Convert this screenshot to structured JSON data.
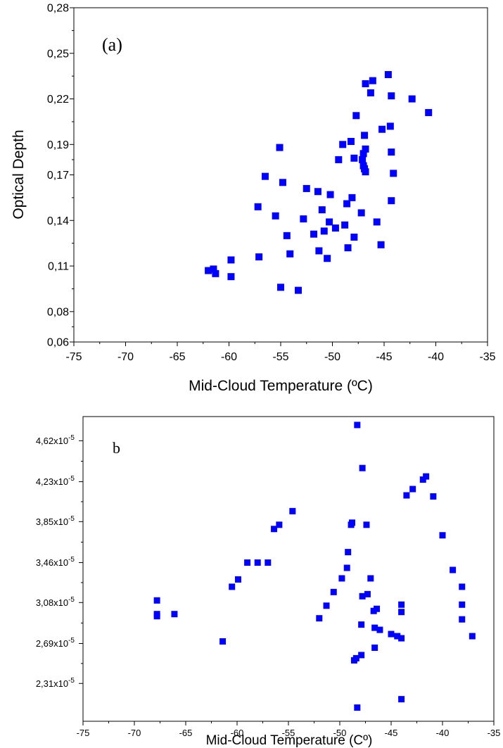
{
  "chart_data": [
    {
      "type": "scatter",
      "panel_label": "(a)",
      "xlabel": "Mid-Cloud Temperature (ºC)",
      "ylabel": "Optical Depth",
      "xlim": [
        -75,
        -35
      ],
      "ylim": [
        0.06,
        0.28
      ],
      "x_ticks": [
        "-75",
        "-70",
        "-65",
        "-60",
        "-55",
        "-50",
        "-45",
        "-40",
        "-35"
      ],
      "y_tick_values": [
        0.06,
        0.08,
        0.11,
        0.14,
        0.17,
        0.19,
        0.22,
        0.25,
        0.28
      ],
      "y_ticks": [
        "0,06",
        "0,08",
        "0,11",
        "0,14",
        "0,17",
        "0,19",
        "0,22",
        "0,25",
        "0,28"
      ],
      "marker_color": "#0000ff",
      "points": [
        [
          -62,
          0.107
        ],
        [
          -61.5,
          0.108
        ],
        [
          -61.3,
          0.105
        ],
        [
          -59.8,
          0.114
        ],
        [
          -59.8,
          0.103
        ],
        [
          -57.1,
          0.116
        ],
        [
          -57.2,
          0.149
        ],
        [
          -56.5,
          0.169
        ],
        [
          -55.5,
          0.143
        ],
        [
          -55.1,
          0.188
        ],
        [
          -54.8,
          0.165
        ],
        [
          -55.0,
          0.096
        ],
        [
          -54.4,
          0.13
        ],
        [
          -54.1,
          0.118
        ],
        [
          -53.3,
          0.094
        ],
        [
          -52.8,
          0.141
        ],
        [
          -52.5,
          0.161
        ],
        [
          -51.8,
          0.131
        ],
        [
          -51.4,
          0.159
        ],
        [
          -51.3,
          0.12
        ],
        [
          -51.0,
          0.147
        ],
        [
          -50.8,
          0.133
        ],
        [
          -50.5,
          0.115
        ],
        [
          -50.3,
          0.139
        ],
        [
          -50.2,
          0.157
        ],
        [
          -49.7,
          0.135
        ],
        [
          -49.4,
          0.18
        ],
        [
          -49.0,
          0.19
        ],
        [
          -48.8,
          0.137
        ],
        [
          -48.6,
          0.151
        ],
        [
          -48.5,
          0.122
        ],
        [
          -48.2,
          0.192
        ],
        [
          -48.1,
          0.155
        ],
        [
          -47.9,
          0.129
        ],
        [
          -47.9,
          0.181
        ],
        [
          -47.7,
          0.209
        ],
        [
          -47.2,
          0.145
        ],
        [
          -47.1,
          0.18
        ],
        [
          -47.0,
          0.176
        ],
        [
          -47.0,
          0.184
        ],
        [
          -46.9,
          0.174
        ],
        [
          -46.8,
          0.172
        ],
        [
          -46.9,
          0.196
        ],
        [
          -46.8,
          0.187
        ],
        [
          -46.8,
          0.23
        ],
        [
          -46.3,
          0.224
        ],
        [
          -46.1,
          0.232
        ],
        [
          -45.7,
          0.139
        ],
        [
          -45.3,
          0.124
        ],
        [
          -45.2,
          0.2
        ],
        [
          -44.6,
          0.236
        ],
        [
          -44.4,
          0.202
        ],
        [
          -44.3,
          0.222
        ],
        [
          -44.3,
          0.185
        ],
        [
          -44.3,
          0.153
        ],
        [
          -44.1,
          0.171
        ],
        [
          -42.3,
          0.22
        ],
        [
          -40.7,
          0.211
        ]
      ]
    },
    {
      "type": "scatter",
      "panel_label": "b",
      "xlabel": "Mid-Cloud Temperature (Cº)",
      "ylabel": "",
      "xlim": [
        -75,
        -35
      ],
      "ylim": [
        1.95e-05,
        4.85e-05
      ],
      "x_ticks": [
        "-75",
        "-70",
        "-65",
        "-60",
        "-55",
        "-50",
        "-45",
        "-40",
        "-35"
      ],
      "y_tick_values": [
        2.31e-05,
        2.69e-05,
        3.08e-05,
        3.46e-05,
        3.85e-05,
        4.23e-05,
        4.62e-05
      ],
      "y_ticks": [
        "2,31x10",
        "2,69x10",
        "3,08x10",
        "3,46x10",
        "3,85x10",
        "4,23x10",
        "4,62x10"
      ],
      "y_tick_exponent": "-5",
      "marker_color": "#0000ff",
      "points": [
        [
          -67.8,
          3.1e-05
        ],
        [
          -67.8,
          2.97e-05
        ],
        [
          -67.8,
          2.95e-05
        ],
        [
          -66.1,
          2.97e-05
        ],
        [
          -61.4,
          2.71e-05
        ],
        [
          -60.5,
          3.23e-05
        ],
        [
          -59.9,
          3.3e-05
        ],
        [
          -59.0,
          3.46e-05
        ],
        [
          -58.0,
          3.46e-05
        ],
        [
          -57.0,
          3.46e-05
        ],
        [
          -56.4,
          3.78e-05
        ],
        [
          -55.9,
          3.82e-05
        ],
        [
          -54.6,
          3.95e-05
        ],
        [
          -52.0,
          2.93e-05
        ],
        [
          -51.3,
          3.05e-05
        ],
        [
          -50.6,
          3.18e-05
        ],
        [
          -49.8,
          3.31e-05
        ],
        [
          -49.3,
          3.41e-05
        ],
        [
          -49.2,
          3.56e-05
        ],
        [
          -48.9,
          3.82e-05
        ],
        [
          -48.8,
          3.84e-05
        ],
        [
          -48.6,
          2.53e-05
        ],
        [
          -48.4,
          2.55e-05
        ],
        [
          -48.3,
          2.08e-05
        ],
        [
          -48.3,
          4.77e-05
        ],
        [
          -47.9,
          2.58e-05
        ],
        [
          -47.9,
          2.87e-05
        ],
        [
          -47.8,
          3.14e-05
        ],
        [
          -47.8,
          4.36e-05
        ],
        [
          -47.4,
          3.82e-05
        ],
        [
          -47.3,
          3.16e-05
        ],
        [
          -47.0,
          3.31e-05
        ],
        [
          -46.7,
          3e-05
        ],
        [
          -46.6,
          2.84e-05
        ],
        [
          -46.6,
          2.65e-05
        ],
        [
          -46.4,
          3.02e-05
        ],
        [
          -46.1,
          2.82e-05
        ],
        [
          -45.0,
          2.78e-05
        ],
        [
          -44.4,
          2.76e-05
        ],
        [
          -44.0,
          3.06e-05
        ],
        [
          -44.0,
          2.99e-05
        ],
        [
          -44.0,
          2.74e-05
        ],
        [
          -44.0,
          2.16e-05
        ],
        [
          -43.5,
          4.1e-05
        ],
        [
          -42.9,
          4.16e-05
        ],
        [
          -41.9,
          4.25e-05
        ],
        [
          -41.6,
          4.28e-05
        ],
        [
          -40.9,
          4.09e-05
        ],
        [
          -40.0,
          3.72e-05
        ],
        [
          -39.0,
          3.39e-05
        ],
        [
          -38.1,
          3.23e-05
        ],
        [
          -38.1,
          3.06e-05
        ],
        [
          -38.1,
          2.92e-05
        ],
        [
          -37.1,
          2.76e-05
        ]
      ]
    }
  ]
}
